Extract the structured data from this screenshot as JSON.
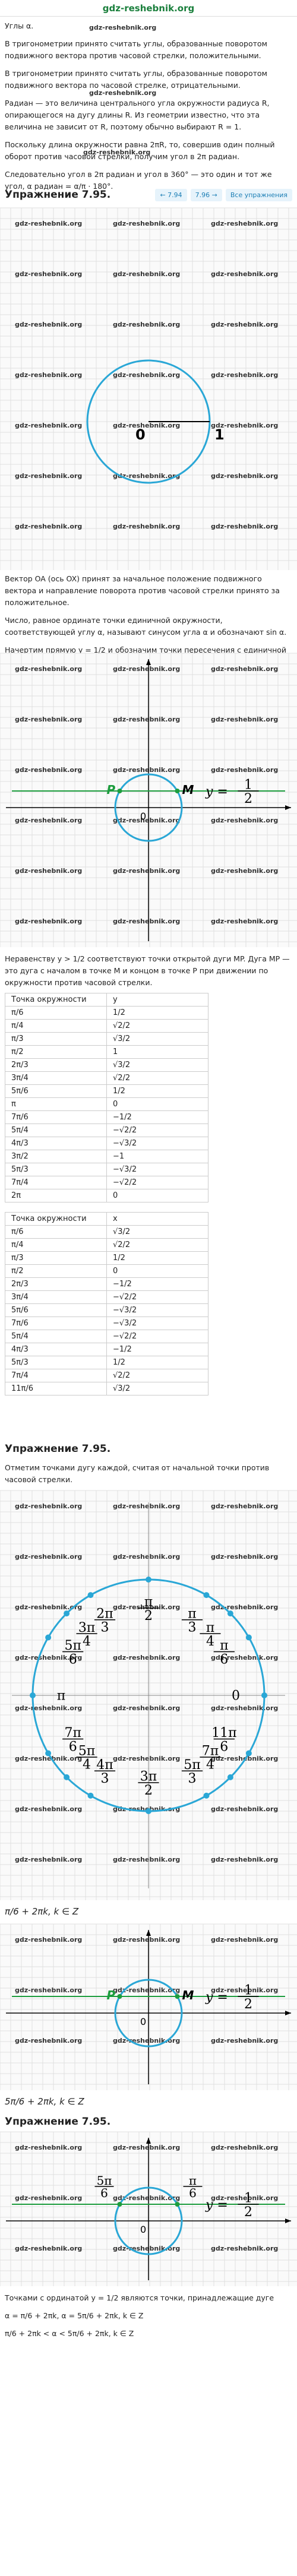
{
  "site": "gdz-reshebnik.org",
  "watermark": "gdz-reshebnik.org",
  "intro": [
    "Углы α.",
    "В тригонометрии принято считать углы, образованные поворотом подвижного вектора против часовой стрелки, положительными.",
    "В тригонометрии принято считать углы, образованные поворотом подвижного вектора по часовой стрелке, отрицательными.",
    "Радиан — это величина центрального угла окружности радиуса R, опирающегося на дугу длины R. Из геометрии известно, что эта величина не зависит от R, поэтому обычно выбирают R = 1.",
    "Поскольку длина окружности равна 2πR, то, совершив один полный оборот против часовой стрелки, получим угол в 2π радиан.",
    "Следовательно угол в 2π радиан и угол в 360° — это один и тот же угол, α радиан = α/π · 180°."
  ],
  "exercise_1": {
    "title": "Упражнение 7.95.",
    "prev": "← 7.94",
    "next": "7.96 →",
    "all": "Все упражнения"
  },
  "figure_1": {
    "origin": "0",
    "one": "1"
  },
  "text_2": [
    "Вектор OA (ось OX) принят за начальное положение подвижного вектора и направление поворота против часовой стрелки принято за положительное.",
    "Число, равное ординате точки единичной окружности, соответствующей углу α, называют синусом угла α и обозначают sin α.",
    "Начертим прямую y = 1/2 и обозначим точки пересечения с единичной окружностью."
  ],
  "figure_2": {
    "p": "P",
    "m": "M",
    "origin": "0",
    "line_label": {
      "lhs": "y =",
      "num": "1",
      "den": "2"
    }
  },
  "text_3": [
    "Неравенству y > 1/2 соответствуют точки открытой дуги MP. Дуга MP — это дуга с началом в точке M и концом в точке P при движении по окружности против часовой стрелки."
  ],
  "table_1": {
    "header": [
      "Точка окружности",
      "y"
    ],
    "rows": [
      [
        "π/6",
        "1/2"
      ],
      [
        "π/4",
        "√2/2"
      ],
      [
        "π/3",
        "√3/2"
      ],
      [
        "π/2",
        "1"
      ],
      [
        "2π/3",
        "√3/2"
      ],
      [
        "3π/4",
        "√2/2"
      ],
      [
        "5π/6",
        "1/2"
      ],
      [
        "π",
        "0"
      ],
      [
        "7π/6",
        "−1/2"
      ],
      [
        "5π/4",
        "−√2/2"
      ],
      [
        "4π/3",
        "−√3/2"
      ],
      [
        "3π/2",
        "−1"
      ],
      [
        "5π/3",
        "−√3/2"
      ],
      [
        "7π/4",
        "−√2/2"
      ],
      [
        "2π",
        "0"
      ]
    ]
  },
  "table_2": {
    "header": [
      "Точка окружности",
      "x"
    ],
    "rows": [
      [
        "π/6",
        "√3/2"
      ],
      [
        "π/4",
        "√2/2"
      ],
      [
        "π/3",
        "1/2"
      ],
      [
        "π/2",
        "0"
      ],
      [
        "2π/3",
        "−1/2"
      ],
      [
        "3π/4",
        "−√2/2"
      ],
      [
        "5π/6",
        "−√3/2"
      ],
      [
        "7π/6",
        "−√3/2"
      ],
      [
        "5π/4",
        "−√2/2"
      ],
      [
        "4π/3",
        "−1/2"
      ],
      [
        "5π/3",
        "1/2"
      ],
      [
        "7π/4",
        "√2/2"
      ],
      [
        "11π/6",
        "√3/2"
      ]
    ]
  },
  "exercise_2": {
    "title": "Упражнение 7.95."
  },
  "text_4": [
    "Отметим точками дугу каждой, считая от начальной точки против часовой стрелки."
  ],
  "figure_3": {
    "labels": [
      {
        "num": "0"
      },
      {
        "num": "π",
        "den": "6"
      },
      {
        "num": "π",
        "den": "4"
      },
      {
        "num": "π",
        "den": "3"
      },
      {
        "num": "π",
        "den": "2"
      },
      {
        "num": "2π",
        "den": "3"
      },
      {
        "num": "3π",
        "den": "4"
      },
      {
        "num": "5π",
        "den": "6"
      },
      {
        "num": "π"
      },
      {
        "num": "7π",
        "den": "6"
      },
      {
        "num": "5π",
        "den": "4"
      },
      {
        "num": "4π",
        "den": "3"
      },
      {
        "num": "3π",
        "den": "2"
      },
      {
        "num": "5π",
        "den": "3"
      },
      {
        "num": "7π",
        "den": "4"
      },
      {
        "num": "11π",
        "den": "6"
      }
    ]
  },
  "formula_1": "π/6 + 2πk, k ∈ Z",
  "figure_4": {
    "p": "P",
    "m": "M",
    "origin": "0",
    "line_label": {
      "lhs": "y =",
      "num": "1",
      "den": "2"
    }
  },
  "formula_2": "5π/6 + 2πk, k ∈ Z",
  "exercise_3": {
    "title": "Упражнение 7.95."
  },
  "figure_5": {
    "left": {
      "num": "5π",
      "den": "6"
    },
    "right": {
      "num": "π",
      "den": "6"
    },
    "origin": "0",
    "line_label": {
      "lhs": "y =",
      "num": "1",
      "den": "2"
    }
  },
  "final": [
    "Точками с ординатой y = 1/2 являются точки, принадлежащие дуге",
    "α = π/6 + 2πk, α = 5π/6 + 2πk, k ∈ Z",
    "π/6 + 2πk < α < 5π/6 + 2πk, k ∈ Z"
  ]
}
